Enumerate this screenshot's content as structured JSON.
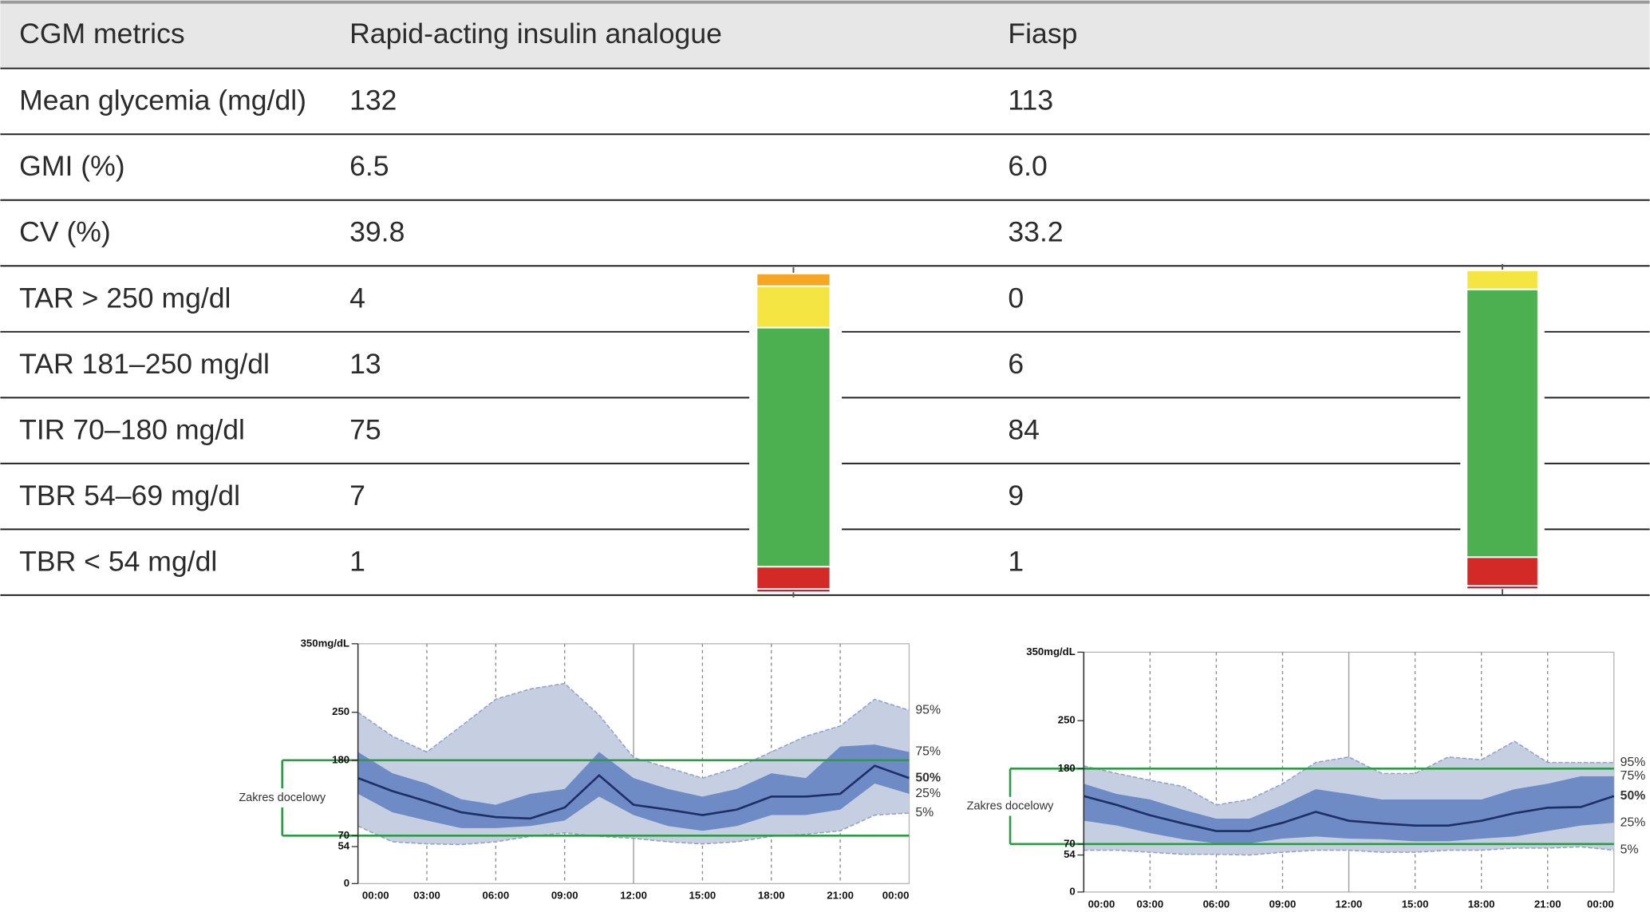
{
  "table": {
    "header": [
      "CGM metrics",
      "Rapid-acting insulin analogue",
      "Fiasp"
    ],
    "rows": [
      [
        "Mean glycemia (mg/dl)",
        132,
        113
      ],
      [
        "GMI (%)",
        6.5,
        "6.0"
      ],
      [
        "CV (%)",
        39.8,
        33.2
      ],
      [
        "TAR > 250 mg/dl",
        4,
        0
      ],
      [
        "TAR 181–250 mg/dl",
        13,
        6
      ],
      [
        "TIR 70–180 mg/dl",
        75,
        84
      ],
      [
        "TBR 54–69 mg/dl",
        7,
        9
      ],
      [
        "TBR < 54 mg/dl",
        1,
        1
      ]
    ]
  },
  "agp": [
    {
      "type": "area",
      "ylim": [
        0,
        350
      ],
      "yticks": [
        {
          "value": 350,
          "label": "350mg/dL"
        },
        250,
        180,
        70,
        54,
        0
      ],
      "xlim": [
        0,
        24
      ],
      "xticks": [
        {
          "value": 0,
          "label": "00:00"
        },
        {
          "value": 3,
          "label": "03:00"
        },
        {
          "value": 6,
          "label": "06:00"
        },
        {
          "value": 9,
          "label": "09:00"
        },
        {
          "value": 12,
          "label": "12:00"
        },
        {
          "value": 15,
          "label": "15:00"
        },
        {
          "value": 18,
          "label": "18:00"
        },
        {
          "value": 21,
          "label": "21:00"
        },
        {
          "value": 24,
          "label": "00:00"
        }
      ],
      "target_range": [
        70,
        180
      ],
      "target_label": "Zakres docelowy",
      "x": [
        0,
        1.5,
        3,
        4.5,
        6,
        7.5,
        9,
        10.5,
        12,
        13.5,
        15,
        16.5,
        18,
        19.5,
        21,
        22.5,
        24
      ],
      "series": [
        {
          "name": "95%",
          "values": [
            250,
            215,
            192,
            230,
            269,
            284,
            292,
            246,
            184,
            169,
            154,
            169,
            192,
            215,
            230,
            269,
            253
          ]
        },
        {
          "name": "75%",
          "values": [
            192,
            161,
            146,
            123,
            115,
            131,
            138,
            192,
            154,
            138,
            127,
            138,
            161,
            154,
            200,
            203,
            192
          ]
        },
        {
          "name": "50%",
          "values": [
            154,
            135,
            120,
            104,
            97,
            95,
            111,
            158,
            115,
            108,
            100,
            108,
            127,
            127,
            131,
            172,
            154
          ]
        },
        {
          "name": "25%",
          "values": [
            131,
            104,
            92,
            81,
            81,
            84,
            92,
            127,
            100,
            84,
            77,
            84,
            100,
            100,
            108,
            146,
            131
          ]
        },
        {
          "name": "5%",
          "values": [
            84,
            61,
            58,
            57,
            61,
            69,
            74,
            69,
            66,
            61,
            58,
            61,
            69,
            72,
            77,
            100,
            103
          ]
        }
      ]
    },
    {
      "type": "area",
      "ylim": [
        0,
        350
      ],
      "yticks": [
        {
          "value": 350,
          "label": "350mg/dL"
        },
        250,
        180,
        70,
        54,
        0
      ],
      "xlim": [
        0,
        24
      ],
      "xticks": [
        {
          "value": 0,
          "label": "00:00"
        },
        {
          "value": 3,
          "label": "03:00"
        },
        {
          "value": 6,
          "label": "06:00"
        },
        {
          "value": 9,
          "label": "09:00"
        },
        {
          "value": 12,
          "label": "12:00"
        },
        {
          "value": 15,
          "label": "15:00"
        },
        {
          "value": 18,
          "label": "18:00"
        },
        {
          "value": 21,
          "label": "21:00"
        },
        {
          "value": 24,
          "label": "00:00"
        }
      ],
      "target_range": [
        70,
        180
      ],
      "target_label": "Zakres docelowy",
      "x": [
        0,
        1.5,
        3,
        4.5,
        6,
        7.5,
        9,
        10.5,
        12,
        13.5,
        15,
        16.5,
        18,
        19.5,
        21,
        22.5,
        24
      ],
      "series": [
        {
          "name": "95%",
          "values": [
            184,
            173,
            163,
            154,
            127,
            135,
            158,
            189,
            197,
            173,
            173,
            197,
            193,
            220,
            189,
            189,
            189
          ]
        },
        {
          "name": "75%",
          "values": [
            158,
            143,
            135,
            120,
            107,
            107,
            127,
            150,
            143,
            135,
            135,
            135,
            135,
            150,
            158,
            169,
            169
          ]
        },
        {
          "name": "50%",
          "values": [
            140,
            127,
            112,
            100,
            89,
            89,
            101,
            117,
            104,
            100,
            97,
            97,
            104,
            115,
            123,
            124,
            140
          ]
        },
        {
          "name": "25%",
          "values": [
            104,
            97,
            86,
            77,
            71,
            71,
            78,
            81,
            78,
            77,
            74,
            74,
            78,
            81,
            89,
            97,
            101
          ]
        },
        {
          "name": "5%",
          "values": [
            61,
            61,
            58,
            55,
            55,
            54,
            58,
            61,
            61,
            58,
            58,
            61,
            61,
            64,
            64,
            66,
            61
          ]
        }
      ]
    }
  ]
}
